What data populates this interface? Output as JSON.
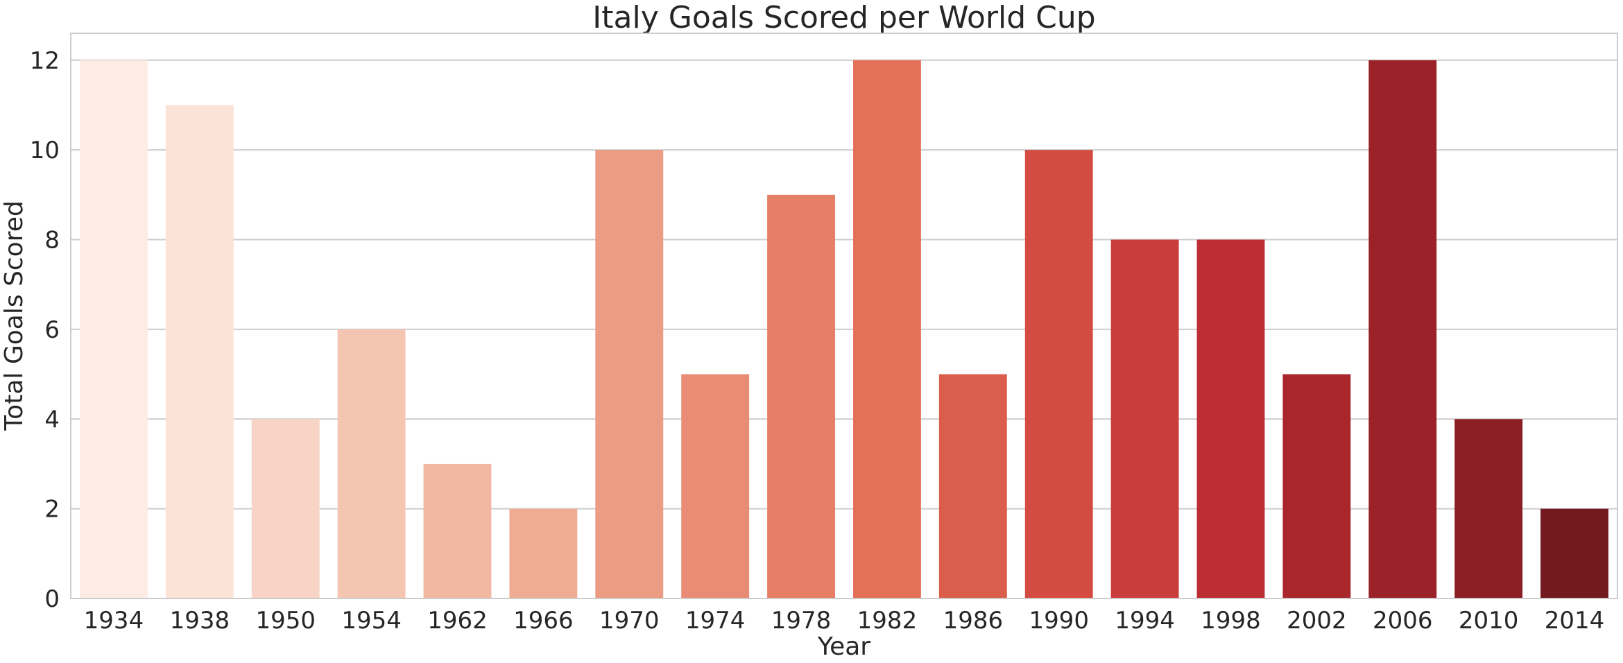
{
  "chart_data": {
    "type": "bar",
    "title": "Italy Goals Scored per World Cup",
    "xlabel": "Year",
    "ylabel": "Total Goals Scored",
    "categories": [
      "1934",
      "1938",
      "1950",
      "1954",
      "1962",
      "1966",
      "1970",
      "1974",
      "1978",
      "1982",
      "1986",
      "1990",
      "1994",
      "1998",
      "2002",
      "2006",
      "2010",
      "2014"
    ],
    "values": [
      12,
      11,
      4,
      6,
      3,
      2,
      10,
      5,
      9,
      12,
      5,
      10,
      8,
      8,
      5,
      12,
      4,
      2
    ],
    "ylim": [
      0,
      12.6
    ],
    "yticks": [
      0,
      2,
      4,
      6,
      8,
      10,
      12
    ],
    "grid": "horizontal",
    "colors": [
      "#fcece4",
      "#fbe3d8",
      "#f7d4c5",
      "#f4c6b2",
      "#f1b7a1",
      "#eeac92",
      "#eb9c83",
      "#e88c75",
      "#e77e66",
      "#e37158",
      "#db5e4c",
      "#d44b42",
      "#c93e3b",
      "#bc2e33",
      "#a9262d",
      "#9c2229",
      "#8b1e24",
      "#721a1e"
    ],
    "gridColor": "#cccccc",
    "spineColor": "#cccccc"
  }
}
